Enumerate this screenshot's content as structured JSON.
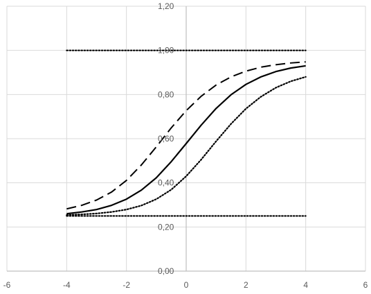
{
  "chart_data": {
    "type": "line",
    "title": "",
    "xlabel": "",
    "ylabel": "",
    "xlim": [
      -6,
      6
    ],
    "ylim": [
      0,
      1.2
    ],
    "grid": true,
    "legend": "none",
    "x_ticks": [
      {
        "value": -6,
        "label": "-6"
      },
      {
        "value": -4,
        "label": "-4"
      },
      {
        "value": -2,
        "label": "-2"
      },
      {
        "value": 0,
        "label": "0"
      },
      {
        "value": 2,
        "label": "2"
      },
      {
        "value": 4,
        "label": "4"
      },
      {
        "value": 6,
        "label": "6"
      }
    ],
    "y_ticks": [
      {
        "value": 0,
        "label": "0,00"
      },
      {
        "value": 0.2,
        "label": "0,20"
      },
      {
        "value": 0.4,
        "label": "0,40"
      },
      {
        "value": 0.6,
        "label": "0,60"
      },
      {
        "value": 0.8,
        "label": "0,80"
      },
      {
        "value": 1.0,
        "label": "1,00"
      },
      {
        "value": 1.2,
        "label": "1,20"
      }
    ],
    "series": [
      {
        "style": "dotted",
        "x": [
          -4,
          4
        ],
        "y": [
          1.0,
          1.0
        ]
      },
      {
        "style": "dotted",
        "x": [
          -4,
          4
        ],
        "y": [
          0.25,
          0.25
        ]
      },
      {
        "style": "dashed",
        "x": [
          -4,
          -3.5,
          -3,
          -2.5,
          -2,
          -1.5,
          -1,
          -0.5,
          0,
          0.5,
          1,
          1.5,
          2,
          2.5,
          3,
          3.5,
          4
        ],
        "y": [
          0.282,
          0.298,
          0.322,
          0.358,
          0.411,
          0.481,
          0.563,
          0.649,
          0.727,
          0.792,
          0.843,
          0.88,
          0.906,
          0.924,
          0.935,
          0.943,
          0.948
        ]
      },
      {
        "style": "solid",
        "x": [
          -4,
          -3.5,
          -3,
          -2.5,
          -2,
          -1.5,
          -1,
          -0.5,
          0,
          0.5,
          1,
          1.5,
          2,
          2.5,
          3,
          3.5,
          4
        ],
        "y": [
          0.26,
          0.268,
          0.279,
          0.298,
          0.326,
          0.367,
          0.423,
          0.496,
          0.578,
          0.661,
          0.737,
          0.799,
          0.846,
          0.88,
          0.904,
          0.92,
          0.93
        ]
      },
      {
        "style": "dotted",
        "x": [
          -4,
          -3.5,
          -3,
          -2.5,
          -2,
          -1.5,
          -1,
          -0.5,
          0,
          0.5,
          1,
          1.5,
          2,
          2.5,
          3,
          3.5,
          4
        ],
        "y": [
          0.254,
          0.257,
          0.261,
          0.268,
          0.279,
          0.297,
          0.326,
          0.369,
          0.43,
          0.505,
          0.588,
          0.667,
          0.736,
          0.79,
          0.831,
          0.86,
          0.88
        ]
      }
    ],
    "colors": {
      "line": "#000000",
      "grid": "#d9d9d9",
      "axis": "#bfbfbf",
      "tick_text": "#595959"
    }
  }
}
